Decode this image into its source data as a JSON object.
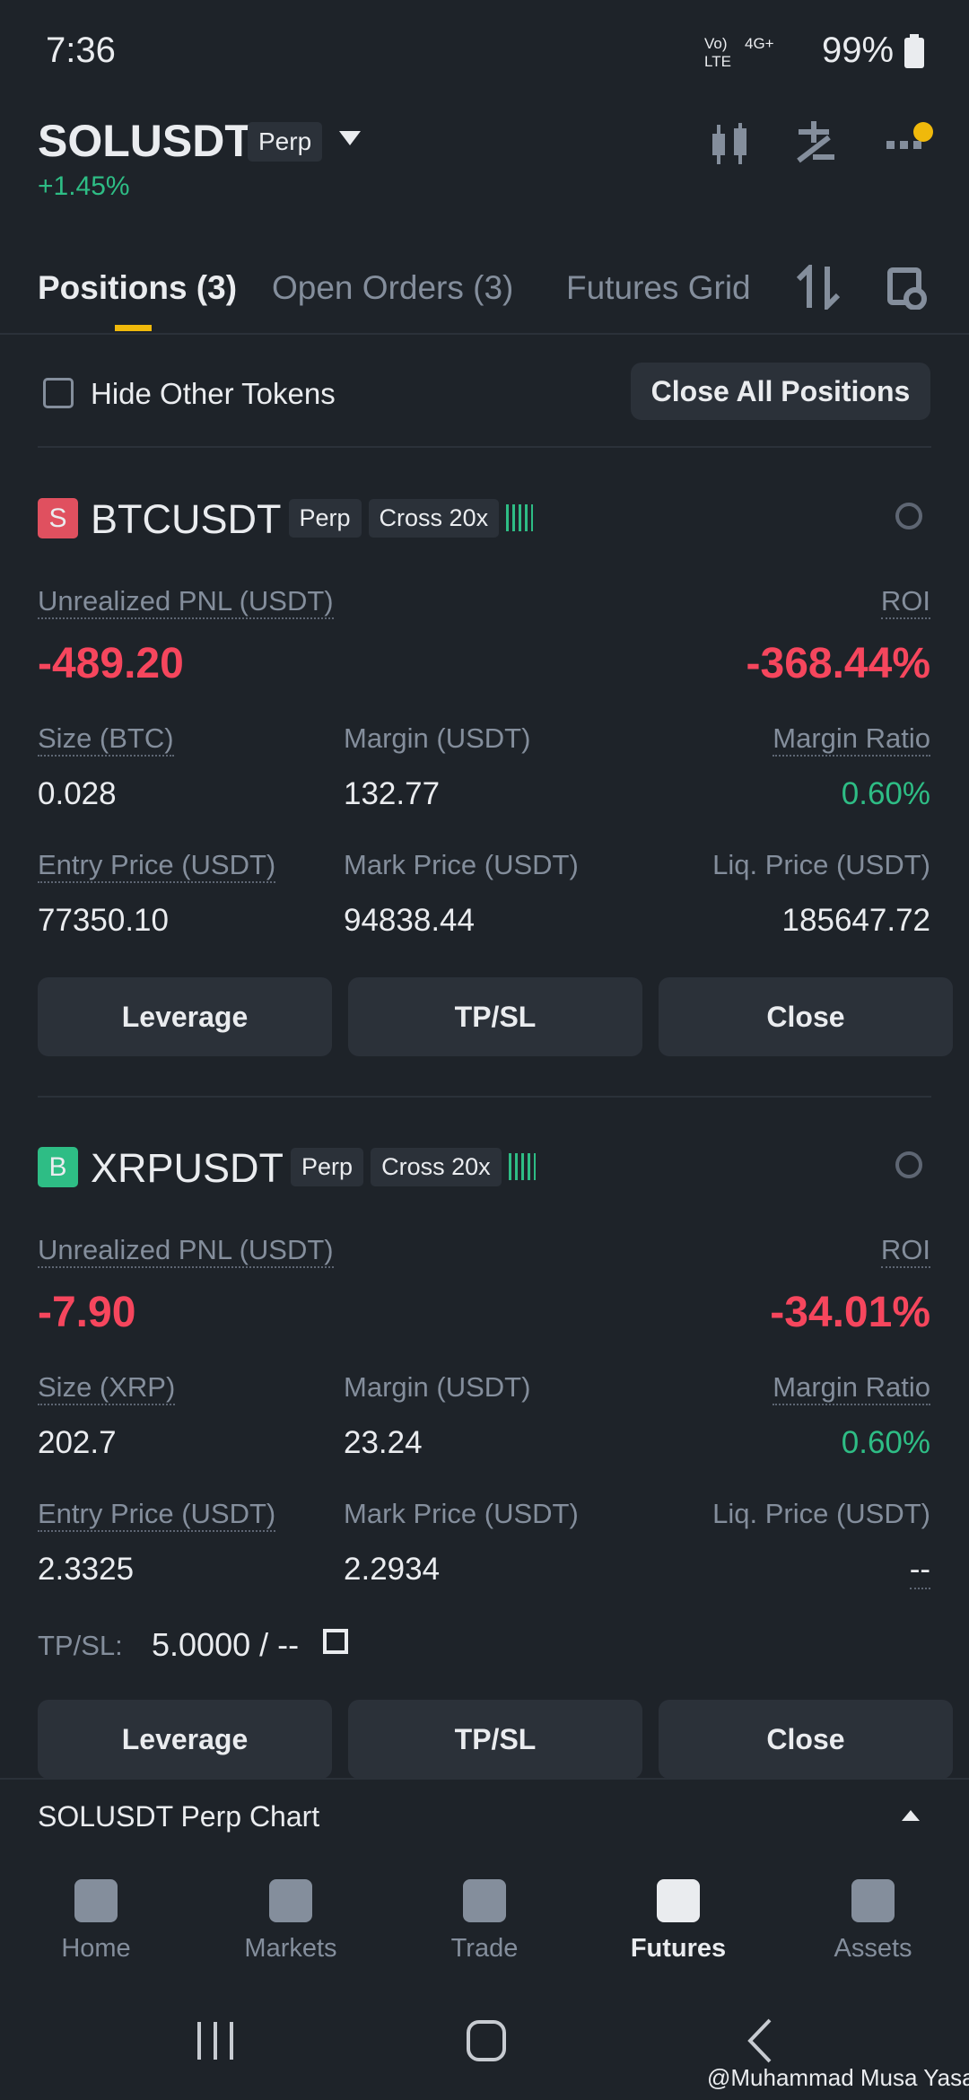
{
  "status_bar": {
    "time": "7:36",
    "signal_labels": [
      "Vo)",
      "LTE",
      "4G+"
    ],
    "battery": "99%"
  },
  "header": {
    "symbol": "SOLUSDT",
    "badge": "Perp",
    "change": "+1.45%"
  },
  "tabs": [
    "Positions (3)",
    "Open Orders (3)",
    "Futures Grid"
  ],
  "filter": {
    "checkbox_label": "Hide Other Tokens",
    "button": "Close All Positions"
  },
  "positions": [
    {
      "side": "S",
      "side_color": "#e0505f",
      "symbol": "BTCUSDT",
      "badges": [
        "Perp",
        "Cross 20x"
      ],
      "pnl_label": "Unrealized PNL (USDT)",
      "pnl": "-489.20",
      "roi_label": "ROI",
      "roi": "-368.44%",
      "fields": [
        {
          "label": "Size (BTC)",
          "value": "0.028"
        },
        {
          "label": "Margin (USDT)",
          "value": "132.77"
        },
        {
          "label": "Margin Ratio",
          "value": "0.60%"
        },
        {
          "label": "Entry Price (USDT)",
          "value": "77350.10"
        },
        {
          "label": "Mark Price (USDT)",
          "value": "94838.44"
        },
        {
          "label": "Liq. Price (USDT)",
          "value": "185647.72"
        }
      ],
      "buttons": [
        "Leverage",
        "TP/SL",
        "Close"
      ]
    },
    {
      "side": "B",
      "side_color": "#2ebd85",
      "symbol": "XRPUSDT",
      "badges": [
        "Perp",
        "Cross 20x"
      ],
      "pnl_label": "Unrealized PNL (USDT)",
      "pnl": "-7.90",
      "roi_label": "ROI",
      "roi": "-34.01%",
      "fields": [
        {
          "label": "Size (XRP)",
          "value": "202.7"
        },
        {
          "label": "Margin (USDT)",
          "value": "23.24"
        },
        {
          "label": "Margin Ratio",
          "value": "0.60%"
        },
        {
          "label": "Entry Price (USDT)",
          "value": "2.3325"
        },
        {
          "label": "Mark Price (USDT)",
          "value": "2.2934"
        },
        {
          "label": "Liq. Price (USDT)",
          "value": "--"
        }
      ],
      "tpsl": {
        "label": "TP/SL:",
        "value": "5.0000 / --"
      },
      "buttons": [
        "Leverage",
        "TP/SL",
        "Close"
      ]
    }
  ],
  "chart_bar": "SOLUSDT Perp Chart",
  "nav": [
    "Home",
    "Markets",
    "Trade",
    "Futures",
    "Assets"
  ],
  "watermark": "@Muhammad Musa Yasa"
}
